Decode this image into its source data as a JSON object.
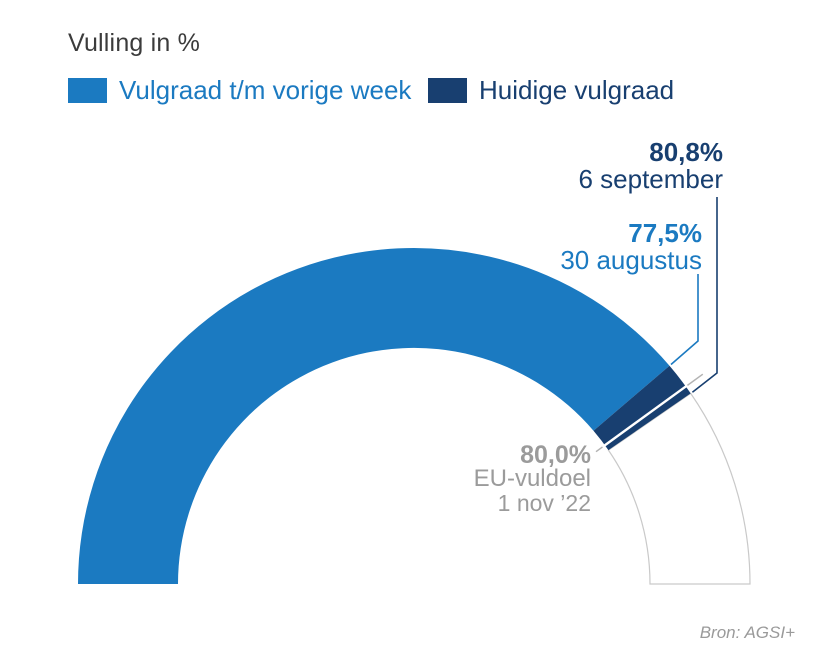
{
  "title": "Vulling in %",
  "source": "Bron: AGSI+",
  "legend": {
    "items": [
      {
        "label": "Vulgraad t/m vorige week",
        "color": "#1b7ac1"
      },
      {
        "label": "Huidige vulgraad",
        "color": "#183f70"
      }
    ]
  },
  "chart_data": {
    "type": "gauge",
    "title": "Vulling in %",
    "unit": "%",
    "range": [
      0,
      100
    ],
    "shape": "half-donut",
    "series": [
      {
        "name": "Vulgraad t/m vorige week",
        "value": 77.5,
        "value_label": "77,5%",
        "date_label": "30 augustus",
        "color": "#1b7ac1"
      },
      {
        "name": "Huidige vulgraad",
        "value": 80.8,
        "value_label": "80,8%",
        "date_label": "6 september",
        "color": "#183f70"
      }
    ],
    "target": {
      "value": 80.0,
      "value_label": "80,0%",
      "name": "EU-vuldoel",
      "date_label": "1 nov ’22",
      "text_color": "#9b9b9b",
      "marker_color": "#b3b3b3"
    },
    "remainder_outline_color": "#c9c9c9",
    "legend_position": "top"
  }
}
